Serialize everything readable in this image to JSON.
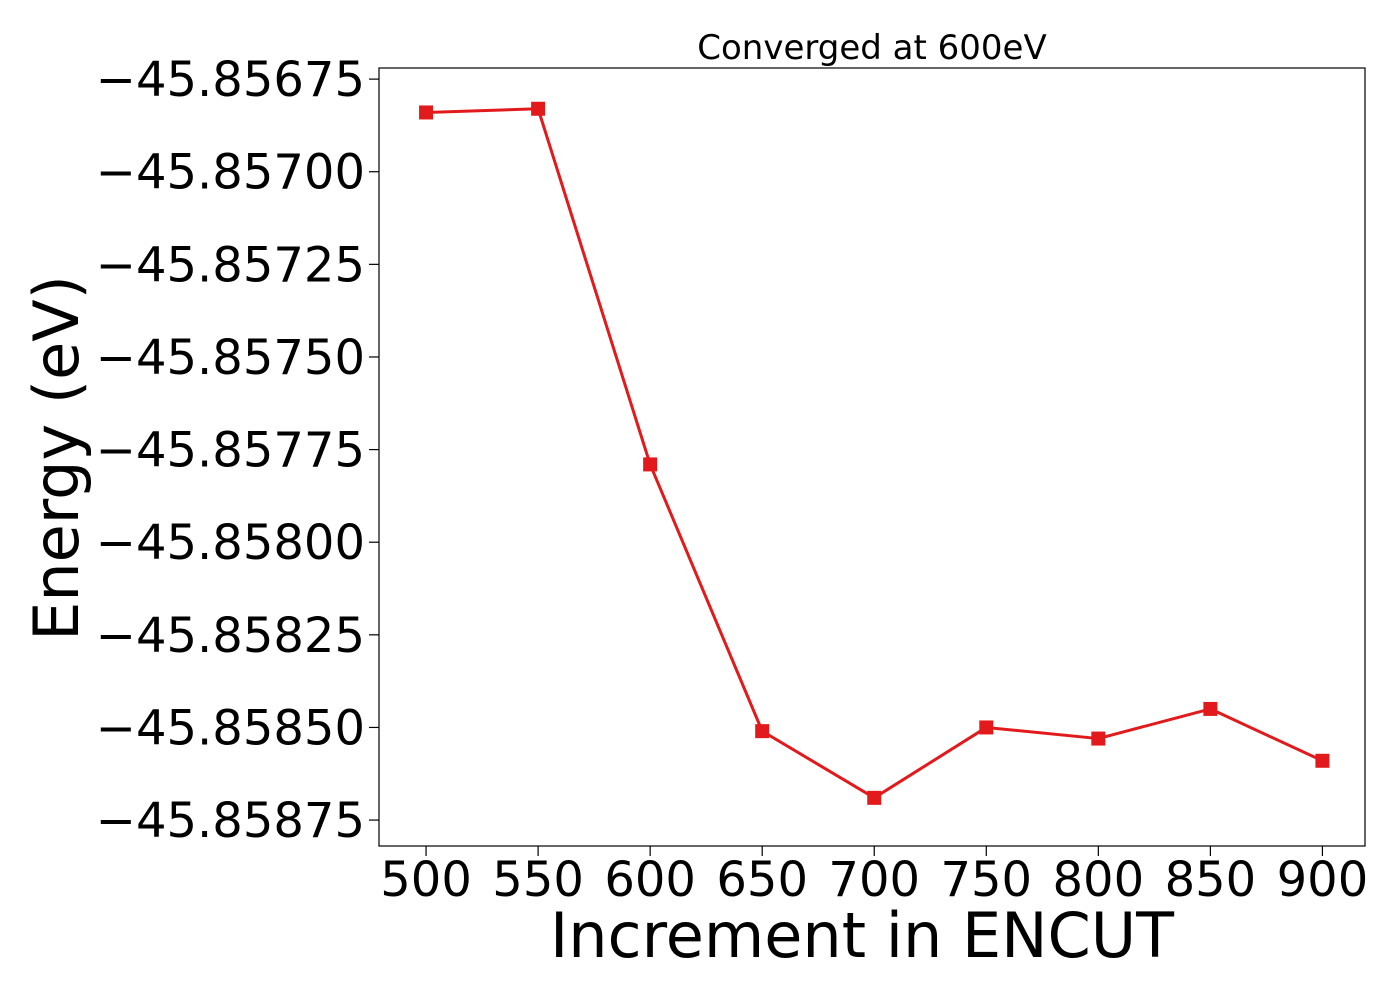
{
  "chart_data": {
    "type": "line",
    "title": "Converged at 600eV",
    "xlabel": "Increment in ENCUT",
    "ylabel": "Energy (eV)",
    "x": [
      500,
      550,
      600,
      650,
      700,
      750,
      800,
      850,
      900
    ],
    "series": [
      {
        "values": [
          -45.85684,
          -45.85683,
          -45.85779,
          -45.85851,
          -45.85869,
          -45.8585,
          -45.85853,
          -45.85845,
          -45.85859
        ],
        "color": "#e31a1c",
        "marker": "square"
      }
    ],
    "xlim": [
      479,
      919
    ],
    "ylim": [
      -45.85882,
      -45.85672
    ],
    "xticks": [
      500,
      550,
      600,
      650,
      700,
      750,
      800,
      850,
      900
    ],
    "yticks": [
      -45.85675,
      -45.857,
      -45.85725,
      -45.8575,
      -45.85775,
      -45.858,
      -45.85825,
      -45.8585,
      -45.85875
    ],
    "xtick_labels": [
      "500",
      "550",
      "600",
      "650",
      "700",
      "750",
      "800",
      "850",
      "900"
    ],
    "ytick_labels": [
      "−45.85675",
      "−45.85700",
      "−45.85725",
      "−45.85750",
      "−45.85775",
      "−45.85800",
      "−45.85825",
      "−45.85850",
      "−45.85875"
    ],
    "grid": false,
    "legend": "none"
  }
}
